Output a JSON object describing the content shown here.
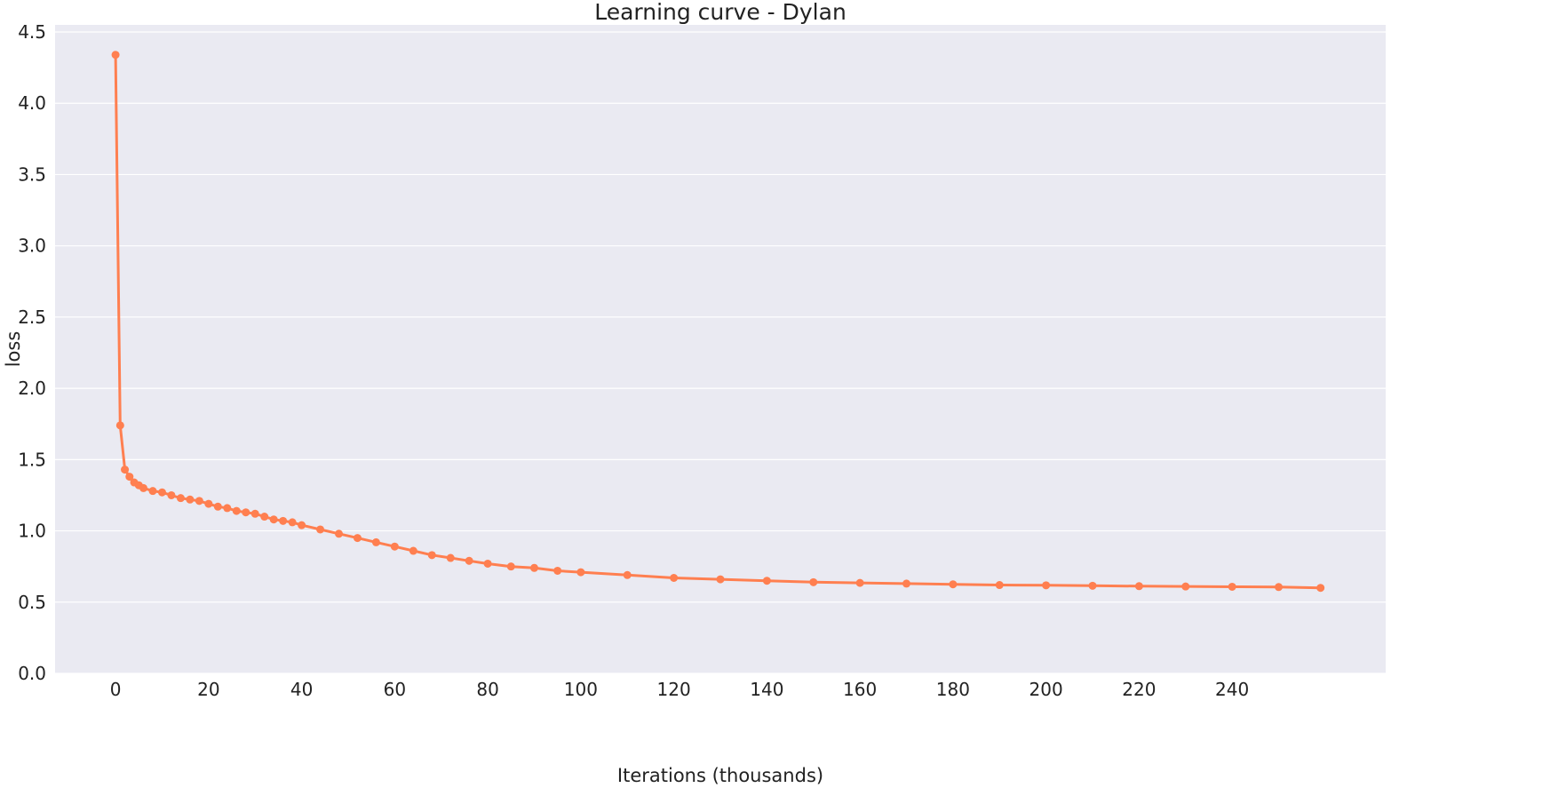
{
  "chart_data": {
    "type": "line",
    "title": "Learning curve - Dylan",
    "xlabel": "Iterations (thousands)",
    "ylabel": "loss",
    "xlim": [
      -13,
      273
    ],
    "ylim": [
      0,
      4.55
    ],
    "x_ticks": [
      0,
      20,
      40,
      60,
      80,
      100,
      120,
      140,
      160,
      180,
      200,
      220,
      240
    ],
    "y_ticks": [
      0.0,
      0.5,
      1.0,
      1.5,
      2.0,
      2.5,
      3.0,
      3.5,
      4.0,
      4.5
    ],
    "y_tick_labels": [
      "0.0",
      "0.5",
      "1.0",
      "1.5",
      "2.0",
      "2.5",
      "3.0",
      "3.5",
      "4.0",
      "4.5"
    ],
    "grid": true,
    "background": "#eaeaf2",
    "series": [
      {
        "color": "#ff7f50",
        "x": [
          0,
          1,
          2,
          3,
          4,
          5,
          6,
          8,
          10,
          12,
          14,
          16,
          18,
          20,
          22,
          24,
          26,
          28,
          30,
          32,
          34,
          36,
          38,
          40,
          44,
          48,
          52,
          56,
          60,
          64,
          68,
          72,
          76,
          80,
          85,
          90,
          95,
          100,
          110,
          120,
          130,
          140,
          150,
          160,
          170,
          180,
          190,
          200,
          210,
          220,
          230,
          240,
          250,
          259
        ],
        "y": [
          4.34,
          1.74,
          1.43,
          1.38,
          1.34,
          1.32,
          1.3,
          1.28,
          1.27,
          1.25,
          1.23,
          1.22,
          1.21,
          1.19,
          1.17,
          1.16,
          1.14,
          1.13,
          1.12,
          1.1,
          1.08,
          1.07,
          1.06,
          1.04,
          1.01,
          0.98,
          0.95,
          0.92,
          0.89,
          0.86,
          0.83,
          0.81,
          0.79,
          0.77,
          0.75,
          0.74,
          0.72,
          0.71,
          0.69,
          0.67,
          0.66,
          0.65,
          0.64,
          0.635,
          0.63,
          0.625,
          0.62,
          0.618,
          0.615,
          0.612,
          0.61,
          0.608,
          0.606,
          0.6
        ]
      }
    ]
  }
}
